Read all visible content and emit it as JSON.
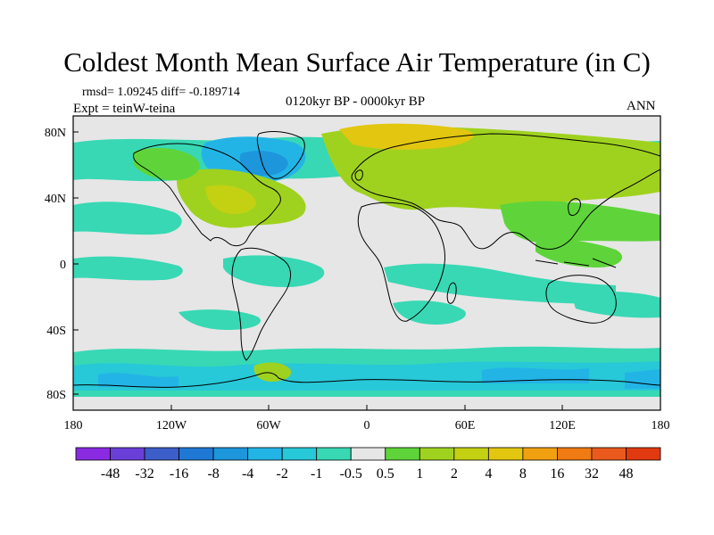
{
  "title": "Coldest Month Mean Surface Air Temperature (in C)",
  "stats_text": "rmsd= 1.09245 diff= -0.189714",
  "experiment_text": "Expt = teinW-teina",
  "period_text": "0120kyr BP - 0000kyr BP",
  "season_text": "ANN",
  "y_ticks": [
    "80N",
    "40N",
    "0",
    "40S",
    "80S"
  ],
  "x_ticks": [
    "180",
    "120W",
    "60W",
    "0",
    "60E",
    "120E",
    "180"
  ],
  "colorbar": {
    "labels": [
      "-48",
      "-32",
      "-16",
      "-8",
      "-4",
      "-2",
      "-1",
      "-0.5",
      "0.5",
      "1",
      "2",
      "4",
      "8",
      "16",
      "32",
      "48"
    ],
    "colors": [
      "#8a2be2",
      "#6a3fd8",
      "#3c5ec8",
      "#1f78d4",
      "#1d96dc",
      "#23b4e6",
      "#27c8d8",
      "#38d8b4",
      "#e6e6e6",
      "#5ed43a",
      "#9fd21f",
      "#c4d012",
      "#e2c610",
      "#f0a010",
      "#f07a14",
      "#ea5a1c",
      "#e23a10"
    ]
  },
  "colors": {
    "neutral": "#e6e6e6",
    "coast": "#000000"
  }
}
